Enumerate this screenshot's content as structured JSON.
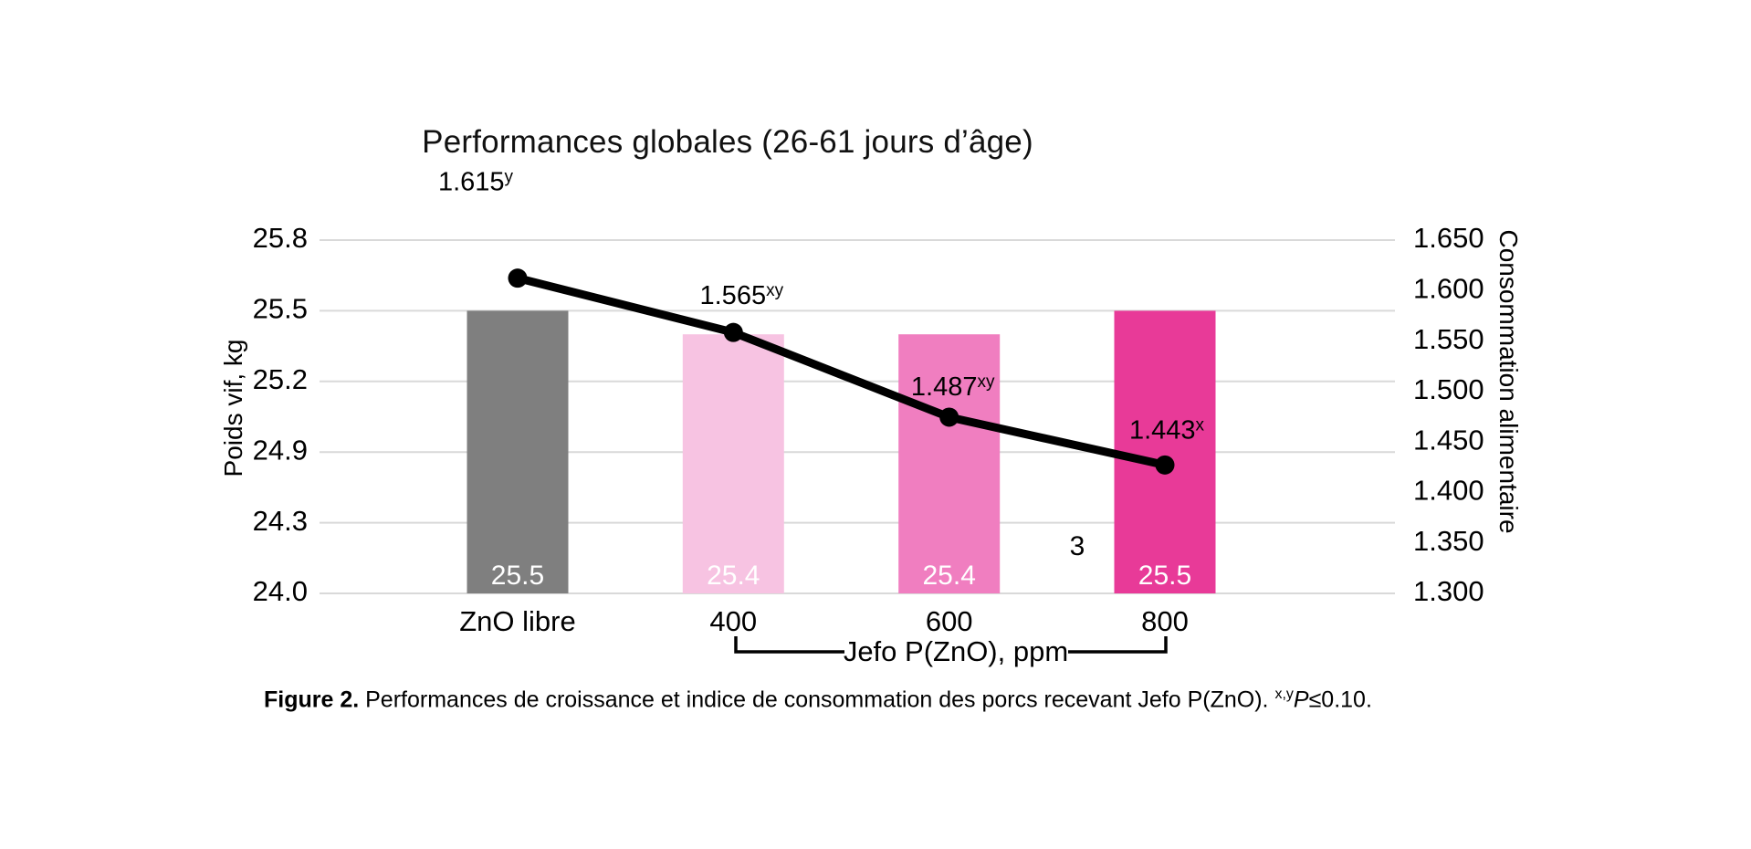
{
  "chart_data": {
    "type": "bar+line",
    "title": "Performances globales (26-61 jours d’âge)",
    "categories": [
      "ZnO libre",
      "400",
      "600",
      "800"
    ],
    "bar_series": {
      "name": "Poids vif, kg",
      "values": [
        25.5,
        25.4,
        25.4,
        25.5
      ],
      "data_labels": [
        "25.5",
        "25.4",
        "25.4",
        "25.5"
      ],
      "colors": [
        "#7f7f7f",
        "#f7c3e2",
        "#f07ec0",
        "#e83a98"
      ],
      "data_label_color": "#ffffff"
    },
    "line_series": {
      "name": "Consommation alimentaire",
      "values": [
        1.615,
        1.565,
        1.487,
        1.443
      ],
      "data_labels": [
        {
          "text": "1.615",
          "sup": "y"
        },
        {
          "text": "1.565",
          "sup": "xy"
        },
        {
          "text": "1.487",
          "sup": "xy"
        },
        {
          "text": "1.443",
          "sup": "x"
        }
      ],
      "color": "#000000"
    },
    "left_axis": {
      "title": "Poids vif, kg",
      "ticks": [
        "25.8",
        "25.5",
        "25.2",
        "24.9",
        "24.3",
        "24.0"
      ],
      "range": [
        24.0,
        25.8
      ]
    },
    "right_axis": {
      "title": "Consommation alimentaire",
      "ticks": [
        "1.650",
        "1.600",
        "1.550",
        "1.500",
        "1.450",
        "1.400",
        "1.350",
        "1.300"
      ],
      "range": [
        1.3,
        1.65
      ]
    },
    "x_axis": {
      "bracket_label": "Jefo P(ZnO), ppm",
      "bracket_from": "400",
      "bracket_to": "800"
    },
    "stray_label": "3",
    "grid": true,
    "gridline_color": "#d9d9d9",
    "background": "#ffffff",
    "legend": "none"
  },
  "caption": {
    "prefix": "Figure 2.",
    "body": " Performances de croissance et indice de consommation des porcs recevant Jefo P(ZnO). ",
    "sup": "x,y",
    "italic": "P",
    "suffix": "≤0.10."
  }
}
